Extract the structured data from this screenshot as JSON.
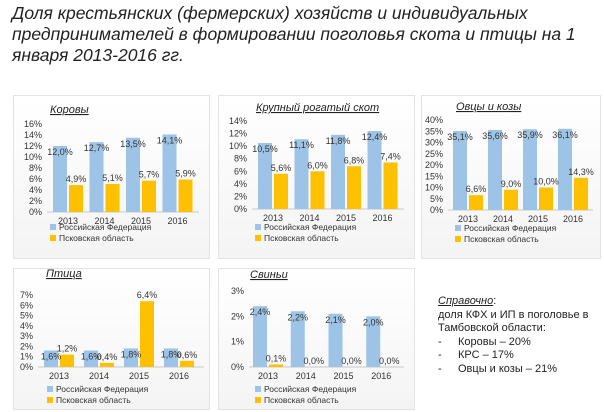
{
  "title": "Доля крестьянских (фермерских) хозяйств и индивидуальных предпринимателей в формировании поголовья скота и птицы на 1 января 2013-2016 гг.",
  "legend": {
    "series1": "Российская Федерация",
    "series2": "Псковская область"
  },
  "colors": {
    "series1": "#9dc3e6",
    "series2": "#ffc000"
  },
  "chart_data": [
    {
      "type": "bar",
      "title": "Коровы",
      "categories": [
        "2013",
        "2014",
        "2015",
        "2016"
      ],
      "series": [
        {
          "name": "Российская Федерация",
          "values": [
            12.0,
            12.7,
            13.5,
            14.1
          ],
          "labels": [
            "12,0%",
            "12,7%",
            "13,5%",
            "14,1%"
          ]
        },
        {
          "name": "Псковская область",
          "values": [
            4.9,
            5.1,
            5.7,
            5.9
          ],
          "labels": [
            "4,9%",
            "5,1%",
            "5,7%",
            "5,9%"
          ]
        }
      ],
      "ylim": [
        0,
        16
      ],
      "yticks": [
        0,
        2,
        4,
        6,
        8,
        10,
        12,
        14,
        16
      ],
      "ytick_labels": [
        "0%",
        "2%",
        "4%",
        "6%",
        "8%",
        "10%",
        "12%",
        "14%",
        "16%"
      ]
    },
    {
      "type": "bar",
      "title": "Крупный рогатый скот",
      "categories": [
        "2013",
        "2014",
        "2015",
        "2016"
      ],
      "series": [
        {
          "name": "Российская Федерация",
          "values": [
            10.5,
            11.1,
            11.8,
            12.4
          ],
          "labels": [
            "10,5%",
            "11,1%",
            "11,8%",
            "12,4%"
          ]
        },
        {
          "name": "Псковская область",
          "values": [
            5.6,
            6.0,
            6.8,
            7.4
          ],
          "labels": [
            "5,6%",
            "6,0%",
            "6,8%",
            "7,4%"
          ]
        }
      ],
      "ylim": [
        0,
        14
      ],
      "yticks": [
        0,
        2,
        4,
        6,
        8,
        10,
        12,
        14
      ],
      "ytick_labels": [
        "0%",
        "2%",
        "4%",
        "6%",
        "8%",
        "10%",
        "12%",
        "14%"
      ]
    },
    {
      "type": "bar",
      "title": "Овцы и козы",
      "categories": [
        "2013",
        "2014",
        "2015",
        "2016"
      ],
      "series": [
        {
          "name": "Российская Федерация",
          "values": [
            35.1,
            35.6,
            35.9,
            36.1
          ],
          "labels": [
            "35,1%",
            "35,6%",
            "35,9%",
            "36,1%"
          ]
        },
        {
          "name": "Псковская область",
          "values": [
            6.6,
            9.0,
            10.0,
            14.3
          ],
          "labels": [
            "6,6%",
            "9,0%",
            "10,0%",
            "14,3%"
          ]
        }
      ],
      "ylim": [
        0,
        40
      ],
      "yticks": [
        0,
        5,
        10,
        15,
        20,
        25,
        30,
        35,
        40
      ],
      "ytick_labels": [
        "0%",
        "5%",
        "10%",
        "15%",
        "20%",
        "25%",
        "30%",
        "35%",
        "40%"
      ]
    },
    {
      "type": "bar",
      "title": "Птица",
      "categories": [
        "2013",
        "2014",
        "2015",
        "2016"
      ],
      "series": [
        {
          "name": "Российская Федерация",
          "values": [
            1.6,
            1.6,
            1.8,
            1.8
          ],
          "labels": [
            "1,6%",
            "1,6%",
            "1,8%",
            "1,8%"
          ]
        },
        {
          "name": "Псковская область",
          "values": [
            1.2,
            0.4,
            6.4,
            0.6
          ],
          "labels": [
            "1,2%",
            "0,4%",
            "6,4%",
            "0,6%"
          ]
        }
      ],
      "ylim": [
        0,
        7
      ],
      "yticks": [
        0,
        1,
        2,
        3,
        4,
        5,
        6,
        7
      ],
      "ytick_labels": [
        "0%",
        "1%",
        "2%",
        "3%",
        "4%",
        "5%",
        "6%",
        "7%"
      ]
    },
    {
      "type": "bar",
      "title": "Свиньи",
      "categories": [
        "2013",
        "2014",
        "2015",
        "2016"
      ],
      "series": [
        {
          "name": "Российская Федерация",
          "values": [
            2.4,
            2.2,
            2.1,
            2.0
          ],
          "labels": [
            "2,4%",
            "2,2%",
            "2,1%",
            "2,0%"
          ]
        },
        {
          "name": "Псковская область",
          "values": [
            0.1,
            0.0,
            0.0,
            0.0
          ],
          "labels": [
            "0,1%",
            "0,0%",
            "0,0%",
            "0,0%"
          ]
        }
      ],
      "ylim": [
        0,
        3
      ],
      "yticks": [
        0,
        1,
        2,
        3
      ],
      "ytick_labels": [
        "0%",
        "1%",
        "2%",
        "3%"
      ]
    }
  ],
  "note": {
    "heading": "Справочно",
    "text": "доля КФХ и ИП в поголовье в Тамбовской области:",
    "items": [
      "Коровы – 20%",
      "КРС – 17%",
      "Овцы и козы – 21%"
    ]
  }
}
